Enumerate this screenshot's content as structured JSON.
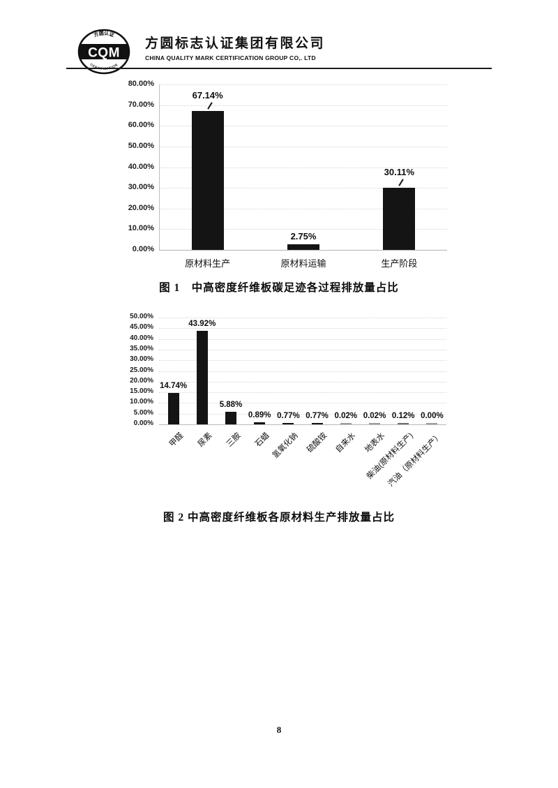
{
  "header": {
    "logo": {
      "abbr": "CQM",
      "top_arc": "方圆认证",
      "bottom_arc": "CERTIFICATION"
    },
    "company_name_cn": "方圆标志认证集团有限公司",
    "company_name_en": "CHINA QUALITY MARK CERTIFICATION GROUP CO,. LTD"
  },
  "figures": [
    {
      "caption": "图 1　中高密度纤维板碳足迹各过程排放量占比"
    },
    {
      "caption": "图 2 中高密度纤维板各原材料生产排放量占比"
    }
  ],
  "page_number": "8",
  "chart_data": [
    {
      "type": "bar",
      "title": "图 1 中高密度纤维板碳足迹各过程排放量占比",
      "categories": [
        "原材料生产",
        "原材料运输",
        "生产阶段"
      ],
      "values": [
        67.14,
        2.75,
        30.11
      ],
      "data_labels": [
        "67.14%",
        "2.75%",
        "30.11%"
      ],
      "xlabel": "",
      "ylabel": "",
      "ylim": [
        0,
        80
      ],
      "ytick_step": 10,
      "ytick_labels": [
        "0.00%",
        "10.00%",
        "20.00%",
        "30.00%",
        "40.00%",
        "50.00%",
        "60.00%",
        "70.00%",
        "80.00%"
      ],
      "grid": "horizontal-dotted",
      "legend": "none",
      "bar_color": "#141414"
    },
    {
      "type": "bar",
      "title": "图 2 中高密度纤维板各原材料生产排放量占比",
      "categories": [
        "甲醛",
        "尿素",
        "三胺",
        "石蜡",
        "氢氧化钠",
        "硫酸铵",
        "自来水",
        "地表水",
        "柴油(原材料生产)",
        "汽油（原材料生产）"
      ],
      "values": [
        14.74,
        43.92,
        5.88,
        0.89,
        0.77,
        0.77,
        0.02,
        0.02,
        0.12,
        0.0
      ],
      "data_labels": [
        "14.74%",
        "43.92%",
        "5.88%",
        "0.89%",
        "0.77%",
        "0.77%",
        "0.02%",
        "0.02%",
        "0.12%",
        "0.00%"
      ],
      "xlabel": "",
      "ylabel": "",
      "ylim": [
        0,
        50
      ],
      "ytick_step": 5,
      "ytick_labels": [
        "0.00%",
        "5.00%",
        "10.00%",
        "15.00%",
        "20.00%",
        "25.00%",
        "30.00%",
        "35.00%",
        "40.00%",
        "45.00%",
        "50.00%"
      ],
      "grid": "horizontal-dotted",
      "legend": "none",
      "bar_color": "#141414",
      "x_label_rotation_deg": -45
    }
  ]
}
